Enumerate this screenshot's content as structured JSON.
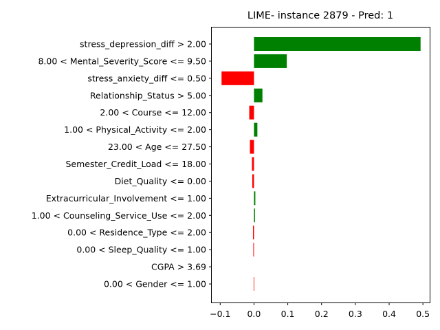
{
  "chart_data": {
    "type": "bar",
    "orientation": "horizontal",
    "title": "LIME- instance 2879 - Pred: 1",
    "xlabel": "",
    "ylabel": "",
    "xlim": [
      -0.125,
      0.52
    ],
    "xticks": [
      -0.1,
      0.0,
      0.1,
      0.2,
      0.3,
      0.4,
      0.5
    ],
    "xtick_labels": [
      "−0.1",
      "0.0",
      "0.1",
      "0.2",
      "0.3",
      "0.4",
      "0.5"
    ],
    "positive_color": "#008000",
    "negative_color": "#ff0000",
    "grid": false,
    "categories": [
      "stress_depression_diff > 2.00",
      "8.00 < Mental_Severity_Score <= 9.50",
      "stress_anxiety_diff <= 0.50",
      "Relationship_Status > 5.00",
      "2.00 < Course <= 12.00",
      "1.00 < Physical_Activity <= 2.00",
      "23.00 < Age <= 27.50",
      "Semester_Credit_Load <= 18.00",
      "Diet_Quality <= 0.00",
      "Extracurricular_Involvement <= 1.00",
      "1.00 < Counseling_Service_Use <= 2.00",
      "0.00 < Residence_Type <= 2.00",
      "0.00 < Sleep_Quality <= 1.00",
      "CGPA > 3.69",
      "0.00 < Gender <= 1.00"
    ],
    "values": [
      0.493,
      0.097,
      -0.096,
      0.025,
      -0.014,
      0.01,
      -0.012,
      -0.006,
      -0.005,
      0.004,
      0.003,
      -0.003,
      -0.002,
      0.0,
      -0.001
    ]
  }
}
